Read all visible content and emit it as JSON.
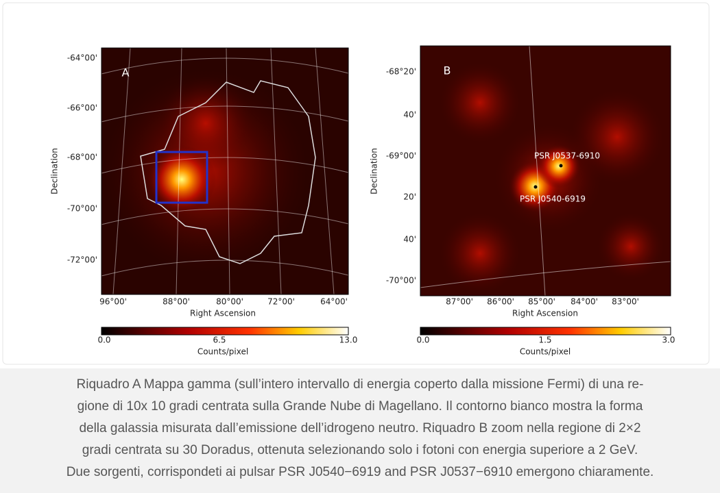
{
  "panel_a": {
    "label": "A",
    "y_axis_label": "Declination",
    "x_axis_label": "Right Ascension",
    "y_ticks": [
      "-64°00'",
      "-66°00'",
      "-68°00'",
      "-70°00'",
      "-72°00'"
    ],
    "x_ticks": [
      "96°00'",
      "88°00'",
      "80°00'",
      "72°00'",
      "64°00'"
    ],
    "colorbar": {
      "ticks": [
        "0.0",
        "6.5",
        "13.0"
      ],
      "label": "Counts/pixel"
    }
  },
  "panel_b": {
    "label": "B",
    "y_axis_label": "Declination",
    "x_axis_label": "Right Ascension",
    "y_ticks": [
      "-68°20'",
      "40'",
      "-69°00'",
      "20'",
      "40'",
      "-70°00'"
    ],
    "x_ticks": [
      "87°00'",
      "86°00'",
      "85°00'",
      "84°00'",
      "83°00'"
    ],
    "annotations": [
      "PSR J0537-6910",
      "PSR J0540-6919"
    ],
    "colorbar": {
      "ticks": [
        "0.0",
        "1.5",
        "3.0"
      ],
      "label": "Counts/pixel"
    }
  },
  "caption": {
    "lines": [
      "Riquadro A Mappa gamma (sull’intero intervallo di energia coperto dalla missione Fermi) di una re-",
      "gione di 10x 10 gradi centrata sulla Grande Nube di Magellano. Il contorno bianco mostra la forma",
      "della galassia misurata dall’emissione dell’idrogeno neutro. Riquadro B zoom nella regione di 2×2",
      "gradi centrata su 30 Doradus, ottenuta selezionando solo i fotoni con energia superiore a 2 GeV.",
      "Due sorgenti, corrispondeti ai pulsar PSR J0540−6919 and PSR J0537−6910 emergono chiaramente."
    ]
  }
}
